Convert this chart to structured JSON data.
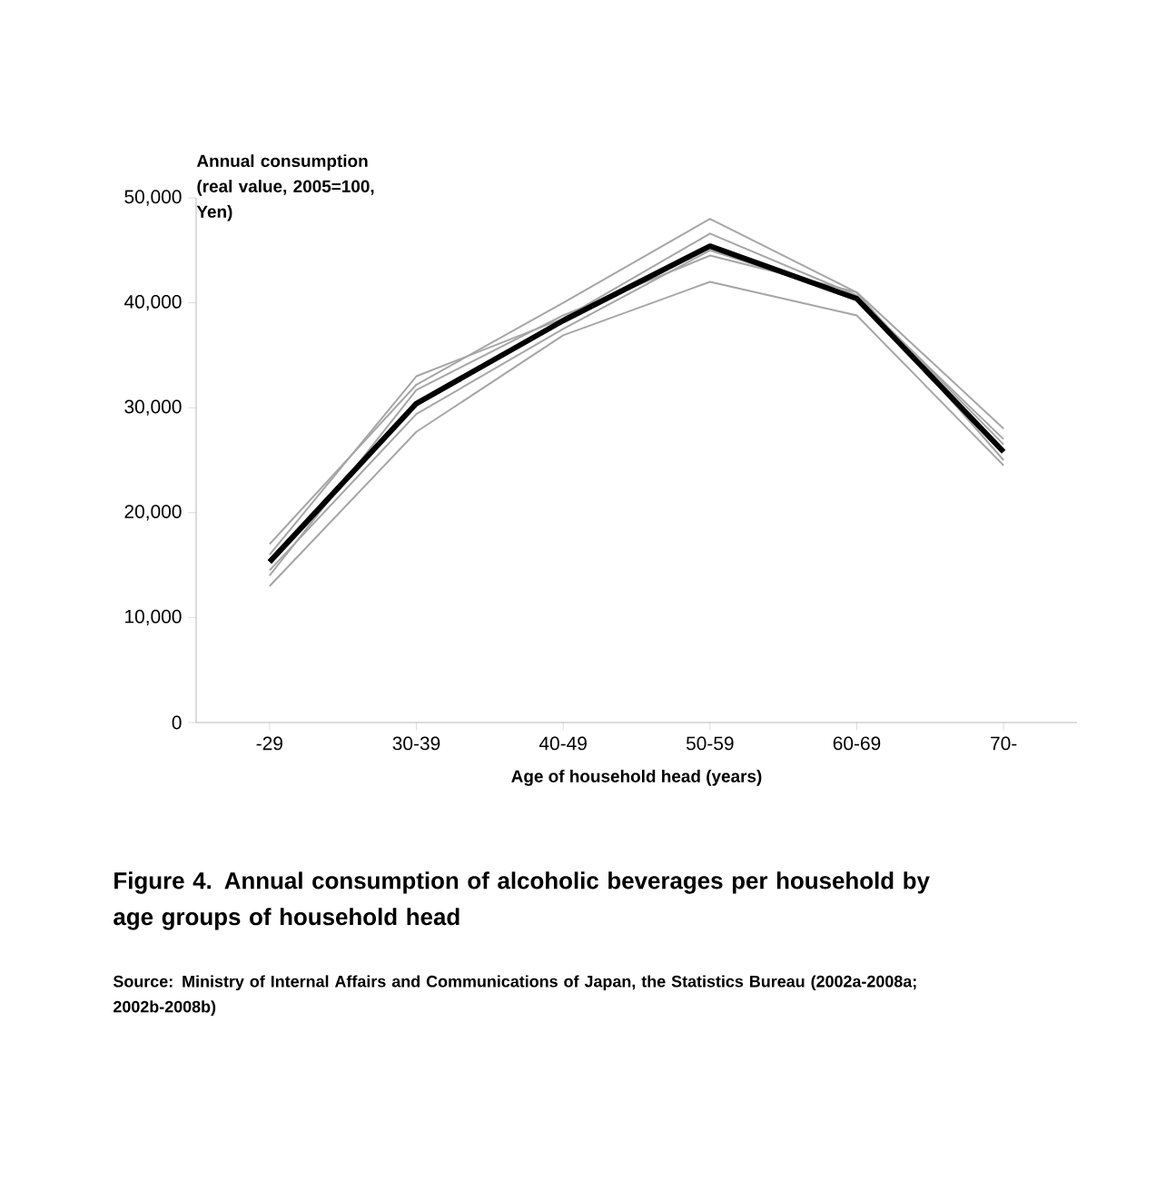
{
  "chart_data": {
    "type": "line",
    "title": "Figure 4.   Annual consumption of alcoholic beverages per household by age groups of household head",
    "xlabel": "Age  of  household  head (years)",
    "ylabel": "Annual consumption (real value, 2005=100, Yen)",
    "annotations": [
      "Source: Ministry of Internal Affairs and Communications of Japan, the Statistics Bureau (2002a-2008a; 2002b-2008b)"
    ],
    "categories": [
      "-29",
      "30-39",
      "40-49",
      "50-59",
      "60-69",
      "70-"
    ],
    "series": [
      {
        "color": "#a6a6a6",
        "values": [
          17000,
          32200,
          40000,
          48000,
          41000,
          28000
        ]
      },
      {
        "color": "#a6a6a6",
        "values": [
          16000,
          33000,
          38500,
          46600,
          40700,
          26500
        ]
      },
      {
        "color": "#a6a6a6",
        "values": [
          14000,
          31700,
          38800,
          44500,
          41000,
          25000
        ]
      },
      {
        "color": "#a6a6a6",
        "values": [
          14500,
          29400,
          37500,
          45000,
          40500,
          27000
        ]
      },
      {
        "color": "#a6a6a6",
        "values": [
          13000,
          27700,
          36900,
          42000,
          38800,
          24500
        ]
      },
      {
        "color": "#000000",
        "values": [
          15300,
          30400,
          38300,
          45400,
          40400,
          25800
        ]
      }
    ],
    "ylim": [
      0,
      50000
    ],
    "yticks": [
      {
        "value": 0,
        "label": "0"
      },
      {
        "value": 10000,
        "label": "10,000"
      },
      {
        "value": 20000,
        "label": "20,000"
      },
      {
        "value": 30000,
        "label": "30,000"
      },
      {
        "value": 40000,
        "label": "40,000"
      },
      {
        "value": 50000,
        "label": "50,000"
      }
    ],
    "grid": false,
    "marker": "none"
  }
}
